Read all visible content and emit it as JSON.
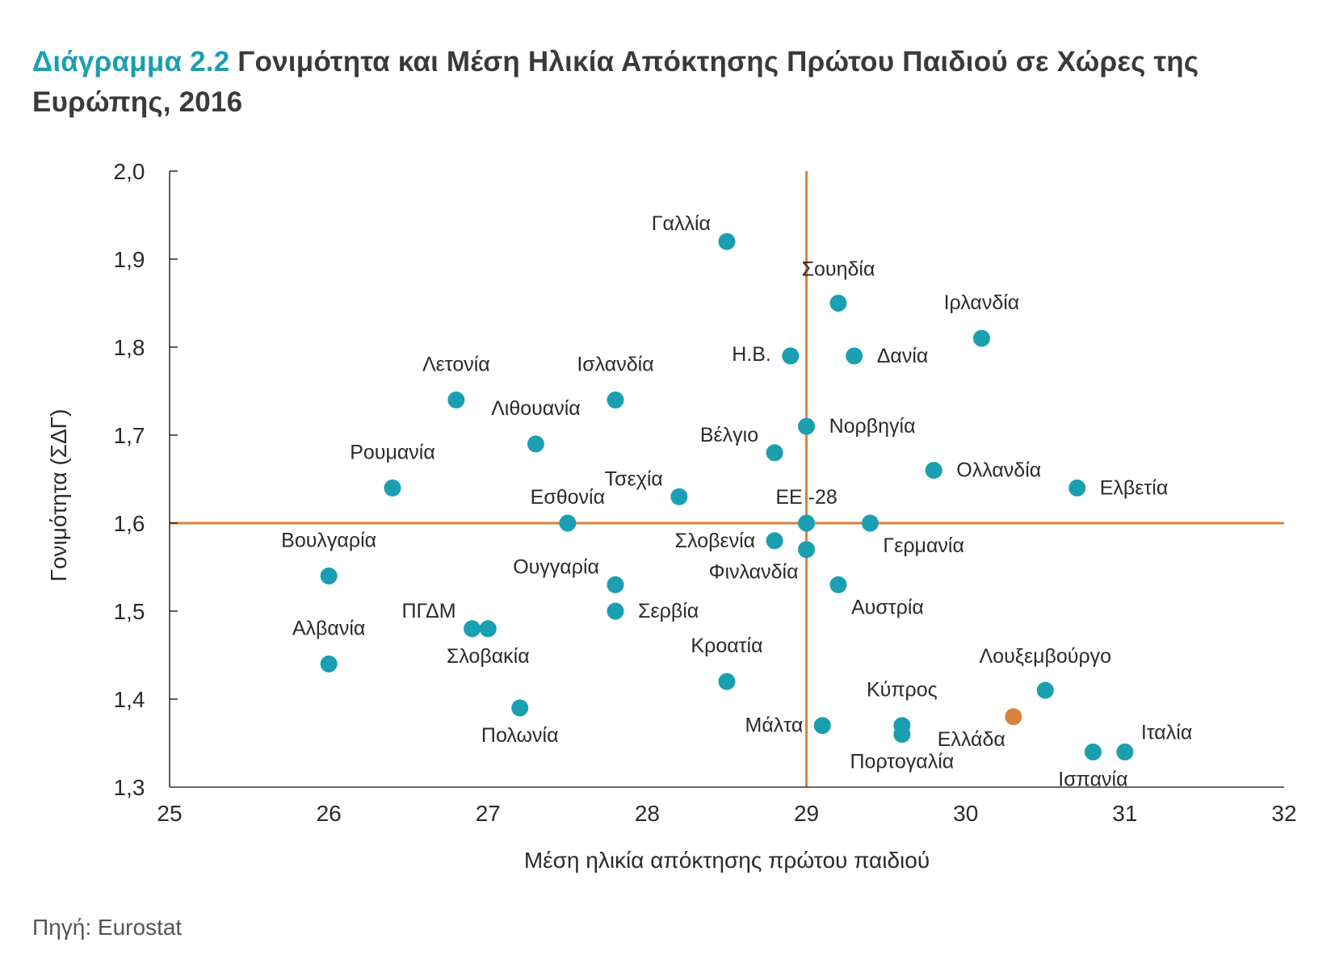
{
  "header": {
    "title_lead": "Διάγραμμα 2.2",
    "title_rest": "Γονιμότητα και Μέση Ηλικία Απόκτησης Πρώτου Παιδιού σε Χώρες της Ευρώπης, 2016"
  },
  "footer": {
    "source": "Πηγή: Eurostat"
  },
  "colors": {
    "point": "#1a9fb0",
    "highlight": "#d9823b",
    "reference": "#d9823b",
    "axis": "#333333",
    "title_accent": "#1a9fb0"
  },
  "chart_data": {
    "type": "scatter",
    "xlabel": "Μέση ηλικία απόκτησης πρώτου παιδιού",
    "ylabel": "Γονιμότητα (ΣΔΓ)",
    "xlim": [
      25,
      32
    ],
    "ylim": [
      1.3,
      2.0
    ],
    "x_ticks": [
      "25",
      "26",
      "27",
      "28",
      "29",
      "30",
      "31",
      "32"
    ],
    "y_ticks": [
      "1,3",
      "1,4",
      "1,5",
      "1,6",
      "1,7",
      "1,8",
      "1,9",
      "2,0"
    ],
    "reference_lines": {
      "x": 29.0,
      "y": 1.6
    },
    "grid": false,
    "points": [
      {
        "label": "Γαλλία",
        "x": 28.5,
        "y": 1.92,
        "pos": "nw"
      },
      {
        "label": "Σουηδία",
        "x": 29.2,
        "y": 1.85,
        "pos": "ne-high"
      },
      {
        "label": "Ιρλανδία",
        "x": 30.1,
        "y": 1.81,
        "pos": "n-high"
      },
      {
        "label": "Η.Β.",
        "x": 28.9,
        "y": 1.79,
        "pos": "w-up"
      },
      {
        "label": "Δανία",
        "x": 29.3,
        "y": 1.79,
        "pos": "e"
      },
      {
        "label": "Λετονία",
        "x": 26.8,
        "y": 1.74,
        "pos": "n-high"
      },
      {
        "label": "Ισλανδία",
        "x": 27.8,
        "y": 1.74,
        "pos": "n-high"
      },
      {
        "label": "Νορβηγία",
        "x": 29.0,
        "y": 1.71,
        "pos": "e"
      },
      {
        "label": "Λιθουανία",
        "x": 27.3,
        "y": 1.69,
        "pos": "n-high"
      },
      {
        "label": "Βέλγιο",
        "x": 28.8,
        "y": 1.68,
        "pos": "nw"
      },
      {
        "label": "Ολλανδία",
        "x": 29.8,
        "y": 1.66,
        "pos": "e"
      },
      {
        "label": "Ελβετία",
        "x": 30.7,
        "y": 1.64,
        "pos": "e"
      },
      {
        "label": "Ρουμανία",
        "x": 26.4,
        "y": 1.64,
        "pos": "n-high"
      },
      {
        "label": "Τσεχία",
        "x": 28.2,
        "y": 1.63,
        "pos": "nw"
      },
      {
        "label": "Εσθονία",
        "x": 27.5,
        "y": 1.6,
        "pos": "n"
      },
      {
        "label": "ΕΕ -28",
        "x": 29.0,
        "y": 1.6,
        "pos": "n"
      },
      {
        "label": "Γερμανία",
        "x": 29.4,
        "y": 1.6,
        "pos": "se"
      },
      {
        "label": "Σλοβενία",
        "x": 28.8,
        "y": 1.58,
        "pos": "w"
      },
      {
        "label": "Φινλανδία",
        "x": 29.0,
        "y": 1.57,
        "pos": "sw"
      },
      {
        "label": "Βουλγαρία",
        "x": 26.0,
        "y": 1.54,
        "pos": "n-high"
      },
      {
        "label": "Ουγγαρία",
        "x": 27.8,
        "y": 1.53,
        "pos": "nw"
      },
      {
        "label": "Αυστρία",
        "x": 29.2,
        "y": 1.53,
        "pos": "se"
      },
      {
        "label": "Σερβία",
        "x": 27.8,
        "y": 1.5,
        "pos": "e"
      },
      {
        "label": "ΠΓΔΜ",
        "x": 26.9,
        "y": 1.48,
        "pos": "nw"
      },
      {
        "label": "Σλοβακία",
        "x": 27.0,
        "y": 1.48,
        "pos": "s"
      },
      {
        "label": "Αλβανία",
        "x": 26.0,
        "y": 1.44,
        "pos": "n-high"
      },
      {
        "label": "Κροατία",
        "x": 28.5,
        "y": 1.42,
        "pos": "n-high"
      },
      {
        "label": "Λουξεμβούργο",
        "x": 30.5,
        "y": 1.41,
        "pos": "ne-high"
      },
      {
        "label": "Πολωνία",
        "x": 27.2,
        "y": 1.39,
        "pos": "s"
      },
      {
        "label": "Ελλάδα",
        "x": 30.3,
        "y": 1.38,
        "pos": "sw",
        "highlight": true
      },
      {
        "label": "Μάλτα",
        "x": 29.1,
        "y": 1.37,
        "pos": "w"
      },
      {
        "label": "Κύπρος",
        "x": 29.6,
        "y": 1.37,
        "pos": "n-high"
      },
      {
        "label": "Πορτογαλία",
        "x": 29.6,
        "y": 1.36,
        "pos": "s"
      },
      {
        "label": "Ιταλία",
        "x": 31.0,
        "y": 1.34,
        "pos": "ne"
      },
      {
        "label": "Ισπανία",
        "x": 30.8,
        "y": 1.34,
        "pos": "s"
      }
    ]
  }
}
